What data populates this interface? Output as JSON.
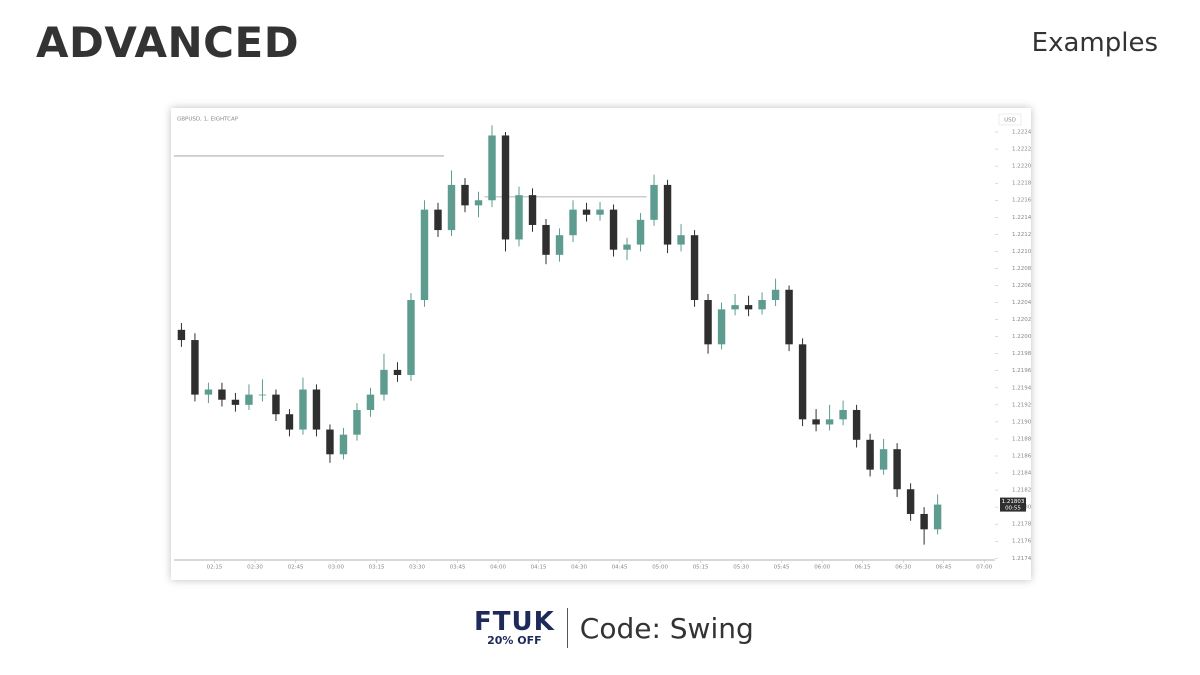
{
  "header": {
    "title": "ADVANCED",
    "subtitle": "Examples"
  },
  "chart_data": {
    "type": "candlestick",
    "title": "GBPUSD, 1, EIGHTCAP",
    "currency": "USD",
    "up_color": "#5e9c8f",
    "down_color": "#2f2f2f",
    "x": [
      "02:00",
      "02:05",
      "02:10",
      "02:15",
      "02:20",
      "02:25",
      "02:30",
      "02:35",
      "02:40",
      "02:45",
      "02:50",
      "02:55",
      "03:00",
      "03:05",
      "03:10",
      "03:15",
      "03:20",
      "03:25",
      "03:30",
      "03:35",
      "03:40",
      "03:45",
      "03:50",
      "03:55",
      "04:00",
      "04:05",
      "04:10",
      "04:15",
      "04:20",
      "04:25",
      "04:30",
      "04:35",
      "04:40",
      "04:45",
      "04:50",
      "04:55",
      "05:00",
      "05:05",
      "05:10",
      "05:15",
      "05:20",
      "05:25",
      "05:30",
      "05:35",
      "05:40",
      "05:45",
      "05:50",
      "05:55",
      "06:00",
      "06:05",
      "06:10",
      "06:15",
      "06:20",
      "06:25",
      "06:30",
      "06:35",
      "06:40"
    ],
    "ohlc": [
      [
        1.22008,
        1.22016,
        1.21988,
        1.21996
      ],
      [
        1.21996,
        1.22004,
        1.21924,
        1.21932
      ],
      [
        1.21932,
        1.21946,
        1.21922,
        1.21938
      ],
      [
        1.21938,
        1.21946,
        1.21918,
        1.21926
      ],
      [
        1.21926,
        1.21934,
        1.21912,
        1.2192
      ],
      [
        1.2192,
        1.21944,
        1.21914,
        1.21932
      ],
      [
        1.21932,
        1.2195,
        1.21924,
        1.21932
      ],
      [
        1.21932,
        1.21938,
        1.21901,
        1.21909
      ],
      [
        1.21909,
        1.21915,
        1.21883,
        1.21891
      ],
      [
        1.21891,
        1.21952,
        1.21885,
        1.21938
      ],
      [
        1.21938,
        1.21944,
        1.21883,
        1.21891
      ],
      [
        1.21891,
        1.21897,
        1.21852,
        1.21862
      ],
      [
        1.21862,
        1.21893,
        1.21856,
        1.21885
      ],
      [
        1.21885,
        1.21922,
        1.21878,
        1.21914
      ],
      [
        1.21914,
        1.2194,
        1.21906,
        1.21932
      ],
      [
        1.21932,
        1.2198,
        1.21925,
        1.21961
      ],
      [
        1.21961,
        1.2197,
        1.21947,
        1.21955
      ],
      [
        1.21955,
        1.22051,
        1.21948,
        1.22043
      ],
      [
        1.22043,
        1.2216,
        1.22035,
        1.22149
      ],
      [
        1.22149,
        1.22157,
        1.22117,
        1.22125
      ],
      [
        1.22125,
        1.22195,
        1.22118,
        1.22178
      ],
      [
        1.22178,
        1.22186,
        1.22146,
        1.22154
      ],
      [
        1.22154,
        1.2217,
        1.2214,
        1.2216
      ],
      [
        1.2216,
        1.22248,
        1.22152,
        1.22236
      ],
      [
        1.22236,
        1.2224,
        1.221,
        1.22114
      ],
      [
        1.22114,
        1.22176,
        1.22106,
        1.22166
      ],
      [
        1.22166,
        1.22174,
        1.22123,
        1.22131
      ],
      [
        1.22131,
        1.22138,
        1.22085,
        1.22096
      ],
      [
        1.22096,
        1.22127,
        1.22088,
        1.22119
      ],
      [
        1.22119,
        1.2216,
        1.22111,
        1.22149
      ],
      [
        1.22149,
        1.22157,
        1.22135,
        1.22143
      ],
      [
        1.22143,
        1.22158,
        1.22136,
        1.22149
      ],
      [
        1.22149,
        1.22155,
        1.22094,
        1.22102
      ],
      [
        1.22102,
        1.22116,
        1.2209,
        1.22108
      ],
      [
        1.22108,
        1.22145,
        1.221,
        1.22137
      ],
      [
        1.22137,
        1.2219,
        1.2213,
        1.22178
      ],
      [
        1.22178,
        1.22184,
        1.22098,
        1.22108
      ],
      [
        1.22108,
        1.22132,
        1.221,
        1.22119
      ],
      [
        1.22119,
        1.22125,
        1.22035,
        1.22043
      ],
      [
        1.22043,
        1.2205,
        1.2198,
        1.21991
      ],
      [
        1.21991,
        1.2204,
        1.21985,
        1.22032
      ],
      [
        1.22032,
        1.2205,
        1.22025,
        1.22037
      ],
      [
        1.22037,
        1.22048,
        1.22024,
        1.22032
      ],
      [
        1.22032,
        1.22052,
        1.22026,
        1.22043
      ],
      [
        1.22043,
        1.22068,
        1.22036,
        1.22055
      ],
      [
        1.22055,
        1.2206,
        1.21983,
        1.21991
      ],
      [
        1.21991,
        1.21998,
        1.21895,
        1.21903
      ],
      [
        1.21903,
        1.21915,
        1.21889,
        1.21897
      ],
      [
        1.21897,
        1.2192,
        1.2189,
        1.21903
      ],
      [
        1.21903,
        1.21925,
        1.21896,
        1.21914
      ],
      [
        1.21914,
        1.2192,
        1.2187,
        1.21879
      ],
      [
        1.21879,
        1.21886,
        1.21836,
        1.21844
      ],
      [
        1.21844,
        1.2188,
        1.21838,
        1.21868
      ],
      [
        1.21868,
        1.21875,
        1.21812,
        1.21821
      ],
      [
        1.21821,
        1.21828,
        1.21784,
        1.21792
      ],
      [
        1.21792,
        1.218,
        1.21756,
        1.21774
      ],
      [
        1.21774,
        1.21815,
        1.21768,
        1.21803
      ]
    ],
    "levels": [
      {
        "price": 1.22212,
        "from": "02:00",
        "to": "03:40"
      },
      {
        "price": 1.22164,
        "from": "03:55",
        "to": "04:55"
      }
    ],
    "last_price": 1.21803,
    "countdown": "00:55",
    "xlim": [
      "02:00",
      "07:04"
    ],
    "xticks": [
      "02:15",
      "02:30",
      "02:45",
      "03:00",
      "03:15",
      "03:30",
      "03:45",
      "04:00",
      "04:15",
      "04:30",
      "04:45",
      "05:00",
      "05:15",
      "05:30",
      "05:45",
      "06:00",
      "06:15",
      "06:30",
      "06:45",
      "07:00"
    ],
    "ylim": [
      1.21738,
      1.2226
    ],
    "yticks": [
      {
        "value": 1.2174,
        "label": "1.21740"
      },
      {
        "value": 1.2176,
        "label": "1.21760"
      },
      {
        "value": 1.2178,
        "label": "1.21780"
      },
      {
        "value": 1.218,
        "label": "1.21800"
      },
      {
        "value": 1.2182,
        "label": "1.21820"
      },
      {
        "value": 1.2184,
        "label": "1.21840"
      },
      {
        "value": 1.2186,
        "label": "1.21860"
      },
      {
        "value": 1.2188,
        "label": "1.21880"
      },
      {
        "value": 1.219,
        "label": "1.21900"
      },
      {
        "value": 1.2192,
        "label": "1.21920"
      },
      {
        "value": 1.2194,
        "label": "1.21940"
      },
      {
        "value": 1.2196,
        "label": "1.21960"
      },
      {
        "value": 1.2198,
        "label": "1.21980"
      },
      {
        "value": 1.22,
        "label": "1.22000"
      },
      {
        "value": 1.2202,
        "label": "1.22020"
      },
      {
        "value": 1.2204,
        "label": "1.22040"
      },
      {
        "value": 1.2206,
        "label": "1.22060"
      },
      {
        "value": 1.2208,
        "label": "1.22080"
      },
      {
        "value": 1.221,
        "label": "1.22100"
      },
      {
        "value": 1.2212,
        "label": "1.22120"
      },
      {
        "value": 1.2214,
        "label": "1.22140"
      },
      {
        "value": 1.2216,
        "label": "1.22160"
      },
      {
        "value": 1.2218,
        "label": "1.22180"
      },
      {
        "value": 1.222,
        "label": "1.22200"
      },
      {
        "value": 1.2222,
        "label": "1.22220"
      },
      {
        "value": 1.2224,
        "label": "1.22240"
      }
    ]
  },
  "footer": {
    "logo": "FTUK",
    "discount": "20% OFF",
    "code": "Code: Swing"
  }
}
